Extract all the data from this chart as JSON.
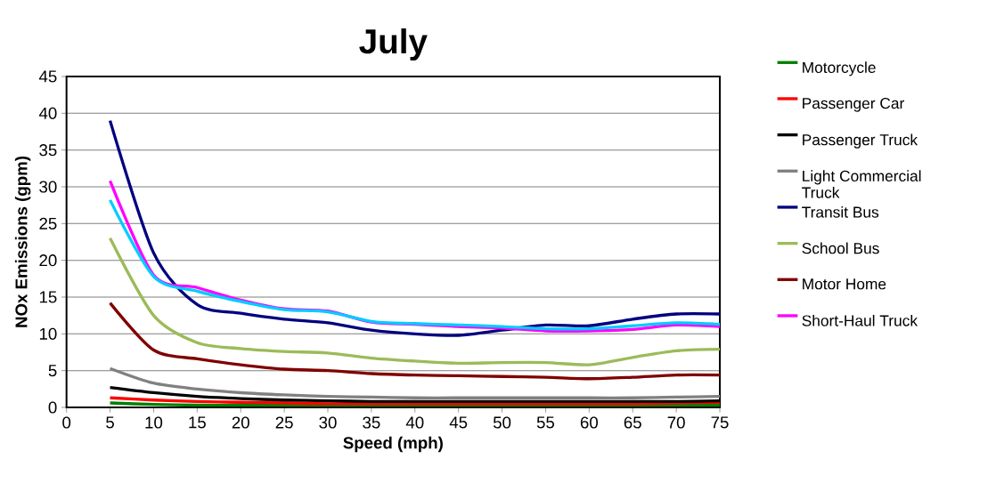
{
  "chart_data": {
    "type": "line",
    "title": "July",
    "xlabel": "Speed (mph)",
    "ylabel": "NOx Emissions (gpm)",
    "x": [
      5,
      10,
      15,
      20,
      25,
      30,
      35,
      40,
      45,
      50,
      55,
      60,
      65,
      70,
      75
    ],
    "series": [
      {
        "name": "Motorcycle",
        "color": "#008000",
        "values": [
          0.6,
          0.4,
          0.3,
          0.3,
          0.3,
          0.3,
          0.3,
          0.3,
          0.3,
          0.3,
          0.3,
          0.3,
          0.3,
          0.3,
          0.3
        ]
      },
      {
        "name": "Passenger Car",
        "color": "#ff0000",
        "values": [
          1.3,
          1.0,
          0.8,
          0.7,
          0.6,
          0.5,
          0.5,
          0.5,
          0.5,
          0.5,
          0.5,
          0.5,
          0.5,
          0.6,
          0.7
        ]
      },
      {
        "name": "Passenger Truck",
        "color": "#000000",
        "values": [
          2.7,
          2.0,
          1.5,
          1.2,
          1.0,
          0.9,
          0.8,
          0.8,
          0.8,
          0.8,
          0.8,
          0.8,
          0.8,
          0.8,
          0.9
        ]
      },
      {
        "name": "Light Commercial Truck",
        "color": "#808080",
        "values": [
          5.3,
          3.3,
          2.5,
          2.0,
          1.7,
          1.5,
          1.4,
          1.3,
          1.3,
          1.3,
          1.3,
          1.3,
          1.3,
          1.4,
          1.5
        ]
      },
      {
        "name": "Transit Bus",
        "color": "#000080",
        "values": [
          39,
          21,
          14,
          12.8,
          12,
          11.5,
          10.5,
          10,
          9.8,
          10.5,
          11.2,
          11.1,
          12,
          12.7,
          12.7
        ]
      },
      {
        "name": "School Bus",
        "color": "#9bbb59",
        "values": [
          23,
          12.5,
          8.8,
          8,
          7.6,
          7.4,
          6.7,
          6.3,
          6,
          6.1,
          6.1,
          5.8,
          6.8,
          7.7,
          7.9
        ]
      },
      {
        "name": "Motor Home",
        "color": "#800000",
        "values": [
          14.2,
          7.8,
          6.6,
          5.8,
          5.2,
          5,
          4.6,
          4.4,
          4.3,
          4.2,
          4.1,
          3.9,
          4.1,
          4.4,
          4.4
        ]
      },
      {
        "name": "Short-Haul Truck",
        "color": "#ff00ff",
        "values": [
          30.8,
          18,
          16.3,
          14.6,
          13.4,
          13.1,
          11.6,
          11.3,
          11,
          10.8,
          10.4,
          10.4,
          10.6,
          11.2,
          11.0
        ]
      },
      {
        "color": "#00ccff",
        "values": [
          28.2,
          17.8,
          15.8,
          14.4,
          13.3,
          13,
          11.7,
          11.4,
          11.2,
          11,
          10.7,
          10.7,
          11.1,
          11.5,
          11.3
        ]
      }
    ],
    "xlim": [
      0,
      75
    ],
    "ylim": [
      0,
      45
    ],
    "xticks": [
      0,
      5,
      10,
      15,
      20,
      25,
      30,
      35,
      40,
      45,
      50,
      55,
      60,
      65,
      70,
      75
    ],
    "yticks": [
      0,
      5,
      10,
      15,
      20,
      25,
      30,
      35,
      40,
      45
    ],
    "grid": "y",
    "legend": "right",
    "marker": "none",
    "line_style": "solid"
  }
}
